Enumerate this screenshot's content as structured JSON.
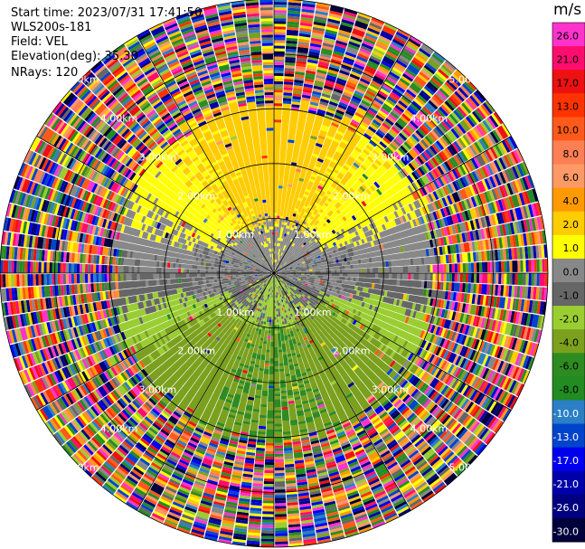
{
  "info": {
    "start_time": "Start time: 2023/07/31 17:41:50",
    "site": "WLS200s-181",
    "field": "Field: VEL",
    "elevation": "Elevation(deg): 35.30",
    "nrays": "NRays: 120"
  },
  "colorbar": {
    "unit": "m/s",
    "ticks": [
      "26.0",
      "21.0",
      "17.0",
      "13.0",
      "10.0",
      "8.0",
      "6.0",
      "4.0",
      "2.0",
      "1.0",
      "0.0",
      "-1.0",
      "-2.0",
      "-4.0",
      "-6.0",
      "-8.0",
      "-10.0",
      "-13.0",
      "-17.0",
      "-21.0",
      "-26.0",
      "-30.0"
    ],
    "colors": [
      "#ff33cc",
      "#ff0d6e",
      "#ee1111",
      "#ff3300",
      "#ff5a1a",
      "#ff7f55",
      "#ff9966",
      "#ff9900",
      "#ffcc00",
      "#ffff00",
      "#888888",
      "#666666",
      "#9acd32",
      "#7ba01e",
      "#2e8b22",
      "#228b22",
      "#2a7fc6",
      "#0044cc",
      "#0000ee",
      "#0000aa",
      "#000080",
      "#00003c"
    ]
  },
  "chart_data": {
    "type": "ppi",
    "field": "VEL",
    "unit": "m/s",
    "nrays": 120,
    "elevation_deg": 35.3,
    "range_rings_km": [
      1.0,
      2.0,
      3.0,
      4.0,
      5.0
    ],
    "ring_labels": [
      "1.00km",
      "2.00km",
      "3.00km",
      "4.00km",
      "5.00km"
    ],
    "spoke_interval_deg": 30,
    "color_scale_ms": [
      -30.0,
      -26.0,
      -21.0,
      -17.0,
      -13.0,
      -10.0,
      -8.0,
      -6.0,
      -4.0,
      -2.0,
      -1.0,
      0.0,
      1.0,
      2.0,
      4.0,
      6.0,
      8.0,
      10.0,
      13.0,
      17.0,
      21.0,
      26.0
    ],
    "pattern": {
      "north_inner_ms": 2.5,
      "south_inner_ms": -4.0,
      "near_center_ms": 0.0,
      "coherent_range_km": 2.9
    }
  }
}
